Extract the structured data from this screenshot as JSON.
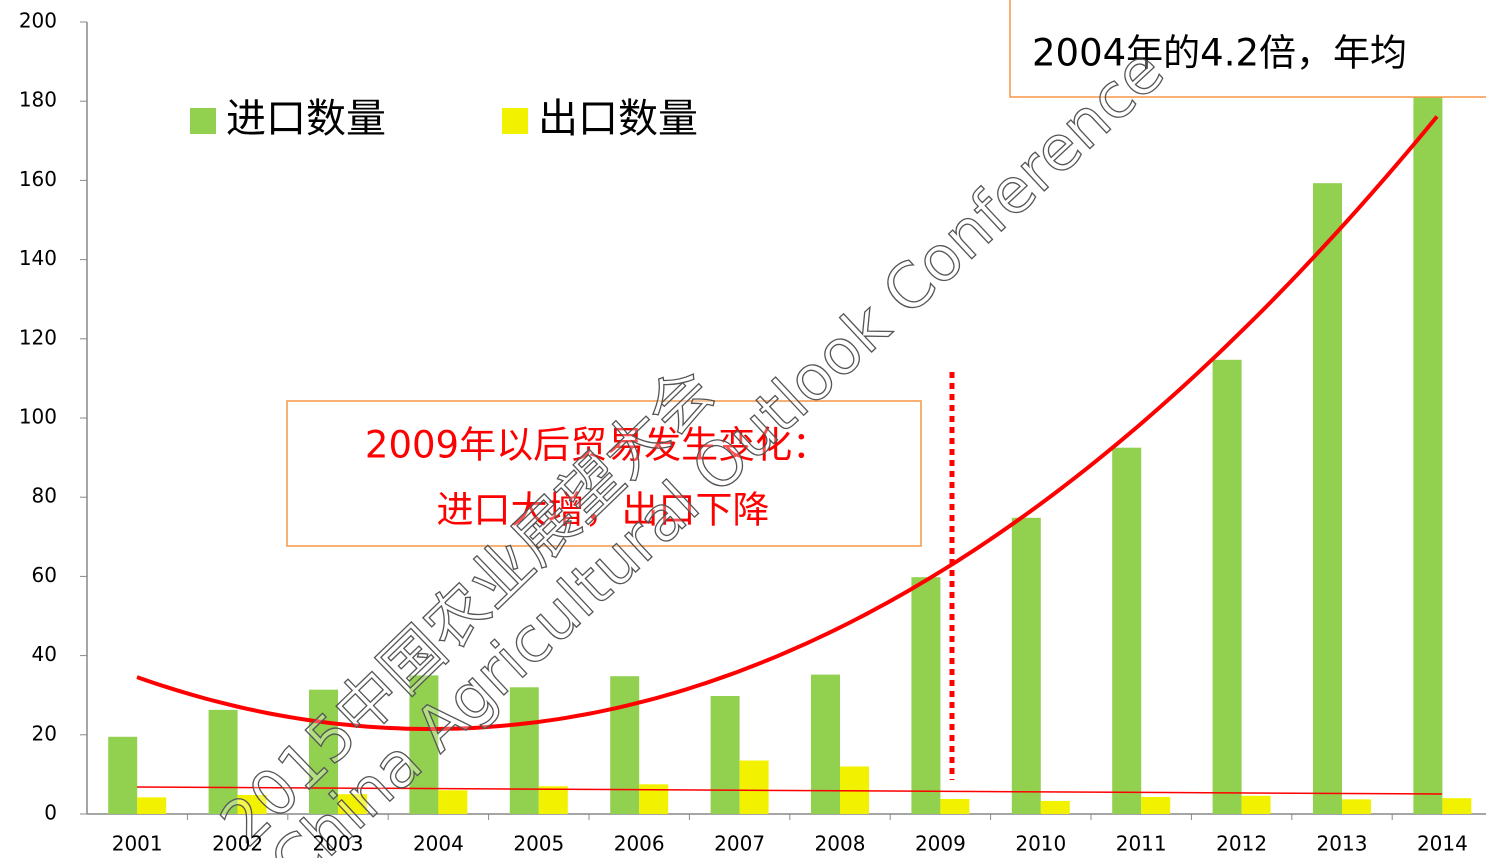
{
  "chart_data": {
    "type": "bar",
    "categories": [
      "2001",
      "2002",
      "2003",
      "2004",
      "2005",
      "2006",
      "2007",
      "2008",
      "2009",
      "2010",
      "2011",
      "2012",
      "2013",
      "2014"
    ],
    "series": [
      {
        "name": "进口数量",
        "color": "#92d050",
        "values": [
          19.5,
          26.3,
          31.4,
          35,
          32,
          34.8,
          29.8,
          35.2,
          59.8,
          74.8,
          92.5,
          114.7,
          159.3,
          181
        ]
      },
      {
        "name": "出口数量",
        "color": "#f2f200",
        "values": [
          4.2,
          4.8,
          5,
          6,
          7,
          7.5,
          13.5,
          12,
          3.8,
          3.3,
          4.3,
          4.6,
          3.7,
          4
        ]
      }
    ],
    "ylim": [
      0,
      200
    ],
    "yticks": [
      0,
      20,
      40,
      60,
      80,
      100,
      120,
      140,
      160,
      180,
      200
    ],
    "annotations": [
      "2009年以后贸易发生变化：",
      "进口大增，出口下降",
      "2004年的4.2倍，年均"
    ],
    "watermarks": [
      "2015中国农业展望大会",
      "China Agricultural Outlook Conference"
    ]
  }
}
